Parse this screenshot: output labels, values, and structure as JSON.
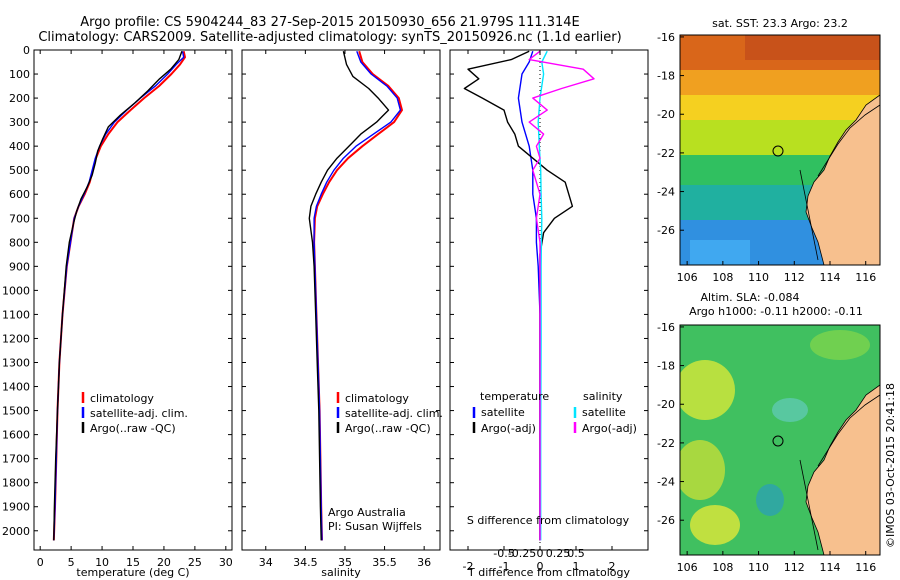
{
  "header": {
    "line1": "Argo profile: CS 5904244_83 27-Sep-2015 20150930_656 21.979S 111.314E",
    "line2": "Climatology: CARS2009. Satellite-adjusted climatology: synTS_20150926.nc (1.1d earlier)"
  },
  "colors": {
    "climatology": "#ff0000",
    "satellite": "#0000ff",
    "argo": "#000000",
    "temp_diff": "#00e5ff",
    "sal_diff": "#ff00ff",
    "land": "#f7c08e"
  },
  "chart_data": [
    {
      "type": "line",
      "id": "temperature-profile",
      "xlabel": "temperature (deg C)",
      "xlim": [
        -1,
        31
      ],
      "ylim": [
        2080,
        0
      ],
      "xticks": [
        0,
        5,
        10,
        15,
        20,
        25,
        30
      ],
      "yticks": [
        0,
        100,
        200,
        300,
        400,
        500,
        600,
        700,
        800,
        900,
        1000,
        1100,
        1200,
        1300,
        1400,
        1500,
        1600,
        1700,
        1800,
        1900,
        2000
      ],
      "legend": [
        "climatology",
        "satellite-adj. clim.",
        "Argo(..raw -QC)"
      ],
      "series": [
        {
          "name": "climatology",
          "color": "#ff0000",
          "x": [
            23.2,
            23.4,
            22.6,
            21.2,
            19.2,
            16.8,
            14.6,
            12.5,
            11.0,
            9.8,
            9.0,
            8.5,
            8.0,
            7.2,
            6.2,
            5.5,
            4.9,
            4.3,
            3.6,
            3.1,
            2.8,
            2.6,
            2.4,
            2.2
          ],
          "y": [
            5,
            30,
            60,
            100,
            150,
            200,
            250,
            300,
            350,
            400,
            450,
            500,
            550,
            600,
            650,
            700,
            800,
            900,
            1100,
            1300,
            1500,
            1700,
            1900,
            2040
          ]
        },
        {
          "name": "satellite-adj. clim.",
          "color": "#0000ff",
          "x": [
            23.0,
            23.2,
            22.0,
            20.6,
            18.6,
            16.2,
            14.0,
            12.0,
            10.6,
            9.6,
            8.9,
            8.4,
            7.9,
            7.1,
            6.2,
            5.5,
            4.9,
            4.3,
            3.6,
            3.1,
            2.8,
            2.6,
            2.4,
            2.2
          ],
          "y": [
            5,
            30,
            60,
            100,
            150,
            200,
            250,
            300,
            350,
            400,
            450,
            500,
            550,
            600,
            650,
            700,
            800,
            900,
            1100,
            1300,
            1500,
            1700,
            1900,
            2040
          ]
        },
        {
          "name": "Argo(..raw -QC)",
          "color": "#000000",
          "x": [
            22.9,
            22.4,
            21.1,
            19.3,
            17.4,
            15.3,
            13.0,
            11.0,
            10.1,
            9.3,
            8.9,
            8.4,
            7.6,
            6.6,
            5.9,
            5.4,
            4.7,
            4.2,
            3.6,
            3.1,
            2.8,
            2.5,
            2.3,
            2.2
          ],
          "y": [
            5,
            40,
            80,
            120,
            170,
            220,
            270,
            320,
            370,
            420,
            470,
            520,
            570,
            620,
            670,
            720,
            800,
            900,
            1100,
            1300,
            1500,
            1700,
            1900,
            2040
          ]
        }
      ]
    },
    {
      "type": "line",
      "id": "salinity-profile",
      "xlabel": "salinity",
      "xlim": [
        33.7,
        36.2
      ],
      "ylim": [
        2080,
        0
      ],
      "xticks": [
        34,
        34.5,
        35,
        35.5,
        36
      ],
      "legend": [
        "climatology",
        "satellite-adj. clim.",
        "Argo(..raw -QC)"
      ],
      "annotation": [
        "Argo Australia",
        "PI: Susan Wijffels"
      ],
      "series": [
        {
          "name": "climatology",
          "color": "#ff0000",
          "x": [
            35.18,
            35.22,
            35.35,
            35.55,
            35.68,
            35.72,
            35.62,
            35.42,
            35.22,
            35.04,
            34.9,
            34.8,
            34.72,
            34.65,
            34.62,
            34.61,
            34.62,
            34.64,
            34.66,
            34.68,
            34.69,
            34.7,
            34.71
          ],
          "y": [
            5,
            50,
            100,
            150,
            200,
            250,
            300,
            350,
            400,
            450,
            500,
            550,
            600,
            650,
            700,
            800,
            900,
            1100,
            1300,
            1500,
            1700,
            1900,
            2040
          ]
        },
        {
          "name": "satellite-adj. clim.",
          "color": "#0000ff",
          "x": [
            35.15,
            35.2,
            35.33,
            35.53,
            35.66,
            35.7,
            35.58,
            35.36,
            35.14,
            34.98,
            34.86,
            34.77,
            34.7,
            34.64,
            34.61,
            34.61,
            34.62,
            34.64,
            34.66,
            34.68,
            34.69,
            34.7,
            34.71
          ],
          "y": [
            5,
            50,
            100,
            150,
            200,
            250,
            300,
            350,
            400,
            450,
            500,
            550,
            600,
            650,
            700,
            800,
            900,
            1100,
            1300,
            1500,
            1700,
            1900,
            2040
          ]
        },
        {
          "name": "Argo(..raw -QC)",
          "color": "#000000",
          "x": [
            34.98,
            35.02,
            35.1,
            35.3,
            35.42,
            35.55,
            35.4,
            35.2,
            35.05,
            34.9,
            34.78,
            34.7,
            34.63,
            34.57,
            34.55,
            34.59,
            34.61,
            34.63,
            34.65,
            34.67,
            34.68,
            34.69,
            34.7
          ],
          "y": [
            5,
            60,
            110,
            160,
            200,
            250,
            300,
            350,
            400,
            450,
            500,
            550,
            600,
            650,
            700,
            800,
            900,
            1100,
            1300,
            1500,
            1700,
            1900,
            2040
          ]
        }
      ]
    },
    {
      "type": "line",
      "id": "difference-profile",
      "xlabel": "T difference from climatology",
      "xlabel_top": "S difference from climatology",
      "xlim": [
        -2.5,
        3
      ],
      "ylim": [
        2080,
        0
      ],
      "xticks": [
        -2,
        -1,
        0,
        1,
        2
      ],
      "sticks": [
        -0.5,
        -0.25,
        0,
        0.25,
        0.5
      ],
      "stick_labels": [
        "-0.5",
        "-0.25",
        "0",
        "0.25",
        "0.5"
      ],
      "legend_headers": [
        "temperature",
        "salinity"
      ],
      "legend": [
        "satellite",
        "Argo(-adj)",
        "satellite",
        "Argo(-adj)"
      ],
      "series": [
        {
          "name": "temperature satellite",
          "color": "#0000ff",
          "x": [
            -0.2,
            -0.3,
            -0.5,
            -0.6,
            -0.5,
            -0.3,
            -0.2,
            -0.2,
            -0.1,
            -0.1,
            -0.05,
            0,
            0,
            0,
            0
          ],
          "y": [
            5,
            50,
            100,
            200,
            300,
            400,
            500,
            600,
            700,
            800,
            900,
            1100,
            1400,
            1700,
            2040
          ]
        },
        {
          "name": "temperature Argo(-adj)",
          "color": "#000000",
          "x": [
            -0.3,
            -0.8,
            -2.0,
            -1.7,
            -2.1,
            -1.6,
            -1.0,
            -0.9,
            -0.7,
            -0.6,
            -0.2,
            0.2,
            0.7,
            0.9,
            0.4,
            0.1,
            0,
            0,
            0,
            0
          ],
          "y": [
            5,
            40,
            80,
            120,
            160,
            200,
            250,
            300,
            350,
            400,
            450,
            500,
            550,
            650,
            700,
            760,
            850,
            1100,
            1500,
            2040
          ]
        },
        {
          "name": "salinity satellite",
          "color": "#00e5ff",
          "x": [
            0.2,
            0.05,
            0.1,
            0.0,
            -0.05,
            -0.02,
            0.02,
            0.03,
            0.05,
            0.04,
            0.03,
            0.03,
            0.02,
            0.02
          ],
          "y": [
            5,
            50,
            100,
            200,
            300,
            400,
            500,
            600,
            700,
            800,
            900,
            1200,
            1600,
            2040
          ]
        },
        {
          "name": "salinity Argo(-adj)",
          "color": "#ff00ff",
          "x": [
            0.0,
            -0.3,
            1.2,
            1.5,
            0.6,
            -0.2,
            0.2,
            -0.3,
            0.1,
            -0.1,
            0.0,
            -0.2,
            0.0,
            -0.1,
            0.0,
            0.0,
            0.0
          ],
          "y": [
            5,
            40,
            80,
            120,
            160,
            200,
            250,
            300,
            350,
            400,
            450,
            500,
            600,
            700,
            800,
            1100,
            2040
          ]
        }
      ]
    }
  ],
  "maps": [
    {
      "title": "sat. SST: 23.3 Argo: 23.2",
      "xticks": [
        106,
        108,
        110,
        112,
        114,
        116
      ],
      "yticks": [
        -16,
        -18,
        -20,
        -22,
        -24,
        -26
      ]
    },
    {
      "title_line1": "Altim. SLA: -0.084",
      "title_line2": "Argo h1000: -0.11 h2000: -0.11",
      "xticks": [
        106,
        108,
        110,
        112,
        114,
        116
      ],
      "yticks": [
        -16,
        -18,
        -20,
        -22,
        -24,
        -26
      ]
    }
  ],
  "footer": "©IMOS 03-Oct-2015 20:41:18"
}
